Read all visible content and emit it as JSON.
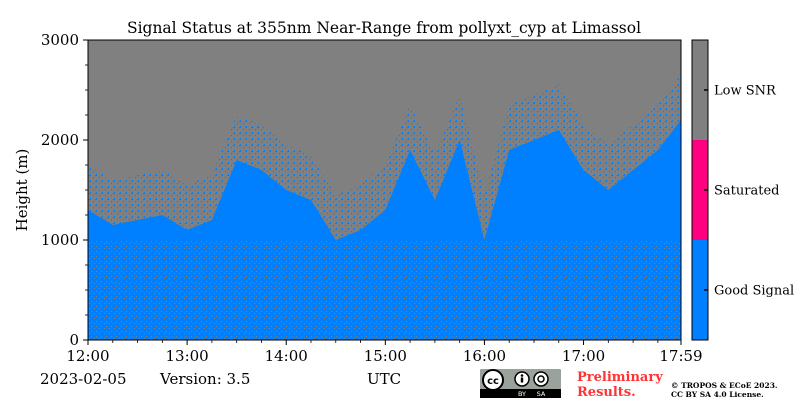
{
  "chart_data": {
    "type": "heatmap",
    "title": "Signal Status at 355nm Near-Range from pollyxt_cyp at Limassol",
    "xlabel": "UTC",
    "ylabel": "Height (m)",
    "x_ticks": [
      "12:00",
      "13:00",
      "14:00",
      "15:00",
      "16:00",
      "17:00",
      "17:59"
    ],
    "y_ticks": [
      "0",
      "1000",
      "2000",
      "3000"
    ],
    "x_range": [
      "12:00",
      "17:59"
    ],
    "ylim": [
      0,
      3000
    ],
    "colorbar": {
      "categories": [
        "Good Signal",
        "Saturated",
        "Low SNR"
      ],
      "colors": [
        "#0080ff",
        "#ff0080",
        "#808080"
      ]
    },
    "signal_top_profile": {
      "time": [
        "12:00",
        "12:15",
        "12:30",
        "12:45",
        "13:00",
        "13:15",
        "13:30",
        "13:45",
        "14:00",
        "14:15",
        "14:30",
        "14:45",
        "15:00",
        "15:15",
        "15:30",
        "15:45",
        "16:00",
        "16:15",
        "16:30",
        "16:45",
        "17:00",
        "17:15",
        "17:30",
        "17:45",
        "17:59"
      ],
      "height_m": [
        1300,
        1150,
        1200,
        1250,
        1100,
        1200,
        1800,
        1700,
        1500,
        1400,
        1000,
        1100,
        1300,
        1900,
        1400,
        2000,
        1000,
        1900,
        2000,
        2100,
        1700,
        1500,
        1700,
        1900,
        2200
      ]
    }
  },
  "footer": {
    "date": "2023-02-05",
    "version": "Version: 3.5",
    "preliminary_line1": "Preliminary",
    "preliminary_line2": "Results.",
    "copyright_line1": "© TROPOS & ECoE 2023.",
    "copyright_line2": "CC BY SA 4.0 License.",
    "cc_badge": [
      "cc",
      "BY",
      "SA"
    ]
  },
  "colors": {
    "good": "#0080ff",
    "saturated": "#ff0080",
    "low_snr": "#808080",
    "preliminary_text": "#ff3333",
    "badge_bg": "#9aa39b",
    "badge_strip": "#000000"
  }
}
